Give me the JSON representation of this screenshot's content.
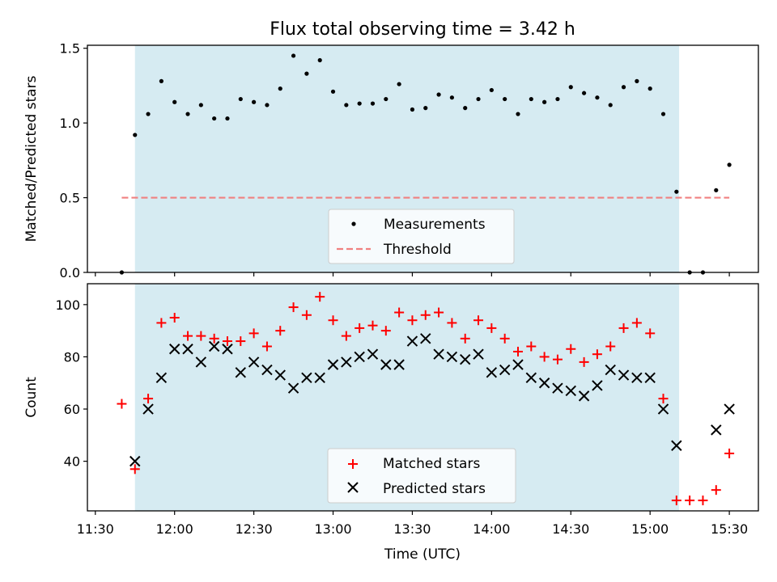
{
  "chart_data": [
    {
      "type": "scatter",
      "title": "Flux total observing time = 3.42 h",
      "xlabel": "",
      "ylabel": "Matched/Predicted stars",
      "xlim": [
        "11:27",
        "15:41"
      ],
      "ylim": [
        0,
        1.52
      ],
      "yticks": [
        "0.0",
        "0.5",
        "1.0",
        "1.5"
      ],
      "shaded_span": [
        "11:45",
        "15:11"
      ],
      "legend": "bottom-center",
      "threshold": {
        "name": "Threshold",
        "value": 0.5,
        "x": [
          "11:40",
          "15:30"
        ],
        "color": "#f08080",
        "style": "dashed"
      },
      "series": [
        {
          "name": "Measurements",
          "marker": "dot",
          "color": "#000000",
          "x": [
            "11:40",
            "11:45",
            "11:50",
            "11:55",
            "12:00",
            "12:05",
            "12:10",
            "12:15",
            "12:20",
            "12:25",
            "12:30",
            "12:35",
            "12:40",
            "12:45",
            "12:50",
            "12:55",
            "13:00",
            "13:05",
            "13:10",
            "13:15",
            "13:20",
            "13:25",
            "13:30",
            "13:35",
            "13:40",
            "13:45",
            "13:50",
            "13:55",
            "14:00",
            "14:05",
            "14:10",
            "14:15",
            "14:20",
            "14:25",
            "14:30",
            "14:35",
            "14:40",
            "14:45",
            "14:50",
            "14:55",
            "15:00",
            "15:05",
            "15:10",
            "15:15",
            "15:20",
            "15:25",
            "15:30"
          ],
          "y": [
            0.0,
            0.92,
            1.06,
            1.28,
            1.14,
            1.06,
            1.12,
            1.03,
            1.03,
            1.16,
            1.14,
            1.12,
            1.23,
            1.45,
            1.33,
            1.42,
            1.21,
            1.12,
            1.13,
            1.13,
            1.16,
            1.26,
            1.09,
            1.1,
            1.19,
            1.17,
            1.1,
            1.16,
            1.22,
            1.16,
            1.06,
            1.16,
            1.14,
            1.16,
            1.24,
            1.2,
            1.17,
            1.12,
            1.24,
            1.28,
            1.23,
            1.06,
            0.54,
            0.0,
            0.0,
            0.55,
            0.72
          ]
        }
      ]
    },
    {
      "type": "scatter",
      "title": "",
      "xlabel": "Time (UTC)",
      "ylabel": "Count",
      "xlim": [
        "11:27",
        "15:41"
      ],
      "ylim": [
        21,
        108
      ],
      "yticks": [
        "40",
        "60",
        "80",
        "100"
      ],
      "xticks": [
        "11:30",
        "12:00",
        "12:30",
        "13:00",
        "13:30",
        "14:00",
        "14:30",
        "15:00",
        "15:30"
      ],
      "shaded_span": [
        "11:45",
        "15:11"
      ],
      "legend": "bottom-center",
      "series": [
        {
          "name": "Matched stars",
          "marker": "plus",
          "color": "#ff0000",
          "x": [
            "11:40",
            "11:45",
            "11:50",
            "11:55",
            "12:00",
            "12:05",
            "12:10",
            "12:15",
            "12:20",
            "12:25",
            "12:30",
            "12:35",
            "12:40",
            "12:45",
            "12:50",
            "12:55",
            "13:00",
            "13:05",
            "13:10",
            "13:15",
            "13:20",
            "13:25",
            "13:30",
            "13:35",
            "13:40",
            "13:45",
            "13:50",
            "13:55",
            "14:00",
            "14:05",
            "14:10",
            "14:15",
            "14:20",
            "14:25",
            "14:30",
            "14:35",
            "14:40",
            "14:45",
            "14:50",
            "14:55",
            "15:00",
            "15:05",
            "15:10",
            "15:15",
            "15:20",
            "15:25",
            "15:30"
          ],
          "y": [
            62,
            37,
            64,
            93,
            95,
            88,
            88,
            87,
            86,
            86,
            89,
            84,
            90,
            99,
            96,
            103,
            94,
            88,
            91,
            92,
            90,
            97,
            94,
            96,
            97,
            93,
            87,
            94,
            91,
            87,
            82,
            84,
            80,
            79,
            83,
            78,
            81,
            84,
            91,
            93,
            89,
            64,
            25,
            25,
            25,
            29,
            43
          ]
        },
        {
          "name": "Predicted stars",
          "marker": "x",
          "color": "#000000",
          "x": [
            "11:45",
            "11:50",
            "11:55",
            "12:00",
            "12:05",
            "12:10",
            "12:15",
            "12:20",
            "12:25",
            "12:30",
            "12:35",
            "12:40",
            "12:45",
            "12:50",
            "12:55",
            "13:00",
            "13:05",
            "13:10",
            "13:15",
            "13:20",
            "13:25",
            "13:30",
            "13:35",
            "13:40",
            "13:45",
            "13:50",
            "13:55",
            "14:00",
            "14:05",
            "14:10",
            "14:15",
            "14:20",
            "14:25",
            "14:30",
            "14:35",
            "14:40",
            "14:45",
            "14:50",
            "14:55",
            "15:00",
            "15:05",
            "15:10",
            "15:25",
            "15:30"
          ],
          "y": [
            40,
            60,
            72,
            83,
            83,
            78,
            84,
            83,
            74,
            78,
            75,
            73,
            68,
            72,
            72,
            77,
            78,
            80,
            81,
            77,
            77,
            86,
            87,
            81,
            80,
            79,
            81,
            74,
            75,
            77,
            72,
            70,
            68,
            67,
            65,
            69,
            75,
            73,
            72,
            72,
            60,
            46,
            52,
            60
          ]
        }
      ]
    }
  ]
}
